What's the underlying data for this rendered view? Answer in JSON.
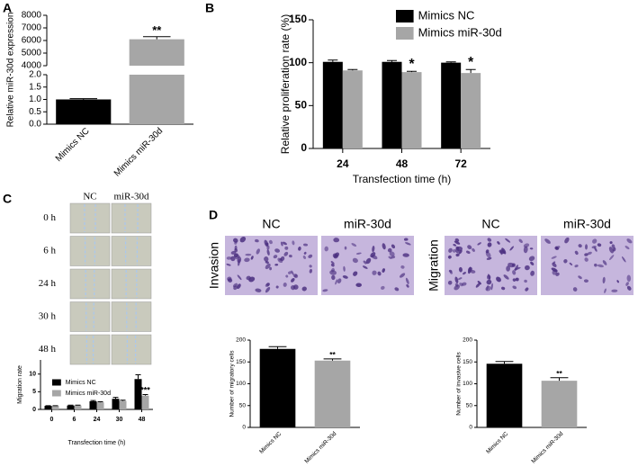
{
  "panel_labels": [
    "A",
    "B",
    "C",
    "D"
  ],
  "scratch_images": {
    "columns": [
      "NC",
      "miR-30d"
    ],
    "rows": [
      "0 h",
      "6 h",
      "24 h",
      "30 h",
      "48 h"
    ]
  },
  "stain_images": {
    "groups": [
      {
        "name": "Invasion",
        "columns": [
          "NC",
          "miR-30d"
        ]
      },
      {
        "name": "Migration",
        "columns": [
          "NC",
          "miR-30d"
        ]
      }
    ]
  },
  "chart_data": [
    {
      "type": "bar",
      "ylabel": "Relative miR-30d expression",
      "categories": [
        "Mimics NC",
        "Mimics miR-30d"
      ],
      "values": [
        1.0,
        6100
      ],
      "errors": [
        0.03,
        200
      ],
      "colors": [
        "#000000",
        "#a6a6a6"
      ],
      "annotations": [
        null,
        "**"
      ],
      "axis_segments": [
        {
          "ylim": [
            0,
            2
          ],
          "yticks": [
            {
              "value": 0,
              "label": "0.0"
            },
            0.5,
            {
              "value": 1,
              "label": "1.0"
            },
            1.5,
            {
              "value": 2,
              "label": "2.0"
            }
          ]
        },
        {
          "ylim": [
            4000,
            8000
          ],
          "yticks": [
            4000,
            5000,
            6000,
            7000,
            8000
          ]
        }
      ]
    },
    {
      "type": "bar",
      "xlabel": "Transfection time (h)",
      "ylabel": "Relative proliferation rate (%)",
      "categories": [
        "24",
        "48",
        "72"
      ],
      "legend": "top",
      "series": [
        {
          "name": "Mimics NC",
          "color": "#000000",
          "values": [
            101,
            101,
            100
          ],
          "errors": [
            2,
            1.5,
            1
          ],
          "annotations": [
            null,
            null,
            null
          ]
        },
        {
          "name": "Mimics miR-30d",
          "color": "#a6a6a6",
          "values": [
            91,
            89,
            88
          ],
          "errors": [
            1,
            1,
            4
          ],
          "annotations": [
            null,
            "*",
            "*"
          ]
        }
      ],
      "ylim": [
        0,
        150
      ],
      "yticks": [
        0,
        50,
        100,
        150
      ]
    },
    {
      "type": "bar",
      "xlabel": "Transfection time (h)",
      "ylabel": "Migration rate",
      "categories": [
        "0",
        "6",
        "24",
        "30",
        "48"
      ],
      "legend": "upper left",
      "series": [
        {
          "name": "Mimics NC",
          "color": "#000000",
          "values": [
            1,
            1.1,
            2.3,
            3.0,
            8.6
          ],
          "errors": [
            0.05,
            0.1,
            0.2,
            0.4,
            1.2
          ],
          "annotations": [
            null,
            null,
            null,
            null,
            null
          ]
        },
        {
          "name": "Mimics miR-30d",
          "color": "#a6a6a6",
          "values": [
            1,
            1.1,
            2.0,
            2.4,
            3.9
          ],
          "errors": [
            0.05,
            0.1,
            0.15,
            0.2,
            0.3
          ],
          "annotations": [
            null,
            null,
            null,
            null,
            "***"
          ]
        }
      ],
      "ylim": [
        0,
        14
      ],
      "yticks": [
        0,
        5,
        10
      ]
    },
    {
      "type": "bar",
      "ylabel": "Number of migratory cells",
      "categories": [
        "Mimics NC",
        "Mimics miR-30d"
      ],
      "values": [
        180,
        153
      ],
      "errors": [
        5,
        4
      ],
      "colors": [
        "#000000",
        "#a6a6a6"
      ],
      "annotations": [
        null,
        "**"
      ],
      "ylim": [
        0,
        200
      ],
      "yticks": [
        0,
        50,
        100,
        150,
        200
      ]
    },
    {
      "type": "bar",
      "ylabel": "Number of invasive cells",
      "categories": [
        "Mimics NC",
        "Mimics miR-30d"
      ],
      "values": [
        146,
        107
      ],
      "errors": [
        5,
        7
      ],
      "colors": [
        "#000000",
        "#a6a6a6"
      ],
      "annotations": [
        null,
        "**"
      ],
      "ylim": [
        0,
        200
      ],
      "yticks": [
        0,
        50,
        100,
        150,
        200
      ]
    }
  ]
}
